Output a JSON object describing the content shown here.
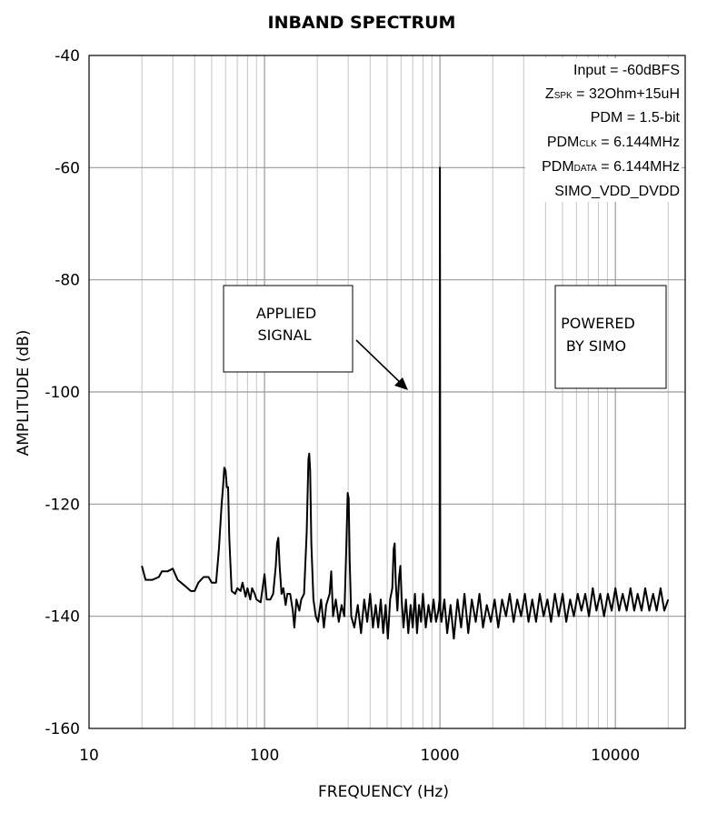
{
  "chart_data": {
    "type": "line",
    "title": "INBAND SPECTRUM",
    "xlabel": "FREQUENCY (Hz)",
    "ylabel": "AMPLITUDE (dB)",
    "xscale": "log",
    "xlim": [
      10,
      25000
    ],
    "ylim": [
      -160,
      -40
    ],
    "grid": true,
    "xticks": [
      {
        "value": 10,
        "label": "10"
      },
      {
        "value": 100,
        "label": "100"
      },
      {
        "value": 1000,
        "label": "1000"
      },
      {
        "value": 10000,
        "label": "10000"
      }
    ],
    "yticks": [
      {
        "value": -40,
        "label": "-40"
      },
      {
        "value": -60,
        "label": "-60"
      },
      {
        "value": -80,
        "label": "-80"
      },
      {
        "value": -100,
        "label": "-100"
      },
      {
        "value": -120,
        "label": "-120"
      },
      {
        "value": -140,
        "label": "-140"
      },
      {
        "value": -160,
        "label": "-160"
      }
    ],
    "series": [
      {
        "points": [
          [
            20,
            -131
          ],
          [
            21,
            -133.5
          ],
          [
            23,
            -133.5
          ],
          [
            25,
            -133
          ],
          [
            26,
            -132
          ],
          [
            28,
            -132
          ],
          [
            30,
            -131.5
          ],
          [
            32,
            -133.5
          ],
          [
            35,
            -134.5
          ],
          [
            38,
            -135.5
          ],
          [
            40,
            -135.5
          ],
          [
            42,
            -134
          ],
          [
            45,
            -133
          ],
          [
            48,
            -133
          ],
          [
            50,
            -134
          ],
          [
            53,
            -134
          ],
          [
            55,
            -128
          ],
          [
            57,
            -120
          ],
          [
            58,
            -117
          ],
          [
            59,
            -113.5
          ],
          [
            60,
            -114
          ],
          [
            61,
            -117
          ],
          [
            62,
            -117
          ],
          [
            63,
            -126
          ],
          [
            65,
            -135.5
          ],
          [
            68,
            -136
          ],
          [
            70,
            -135
          ],
          [
            73,
            -135.5
          ],
          [
            75,
            -134
          ],
          [
            78,
            -136.5
          ],
          [
            80,
            -135
          ],
          [
            83,
            -137
          ],
          [
            85,
            -135
          ],
          [
            88,
            -136
          ],
          [
            90,
            -137
          ],
          [
            95,
            -137.5
          ],
          [
            100,
            -132.5
          ],
          [
            103,
            -137
          ],
          [
            108,
            -137
          ],
          [
            112,
            -136
          ],
          [
            116,
            -131
          ],
          [
            118,
            -127
          ],
          [
            120,
            -126
          ],
          [
            122,
            -131
          ],
          [
            125,
            -136
          ],
          [
            128,
            -135
          ],
          [
            132,
            -138
          ],
          [
            135,
            -136
          ],
          [
            140,
            -136
          ],
          [
            145,
            -139
          ],
          [
            148,
            -142
          ],
          [
            152,
            -137
          ],
          [
            158,
            -139
          ],
          [
            162,
            -137
          ],
          [
            168,
            -136
          ],
          [
            174,
            -125
          ],
          [
            178,
            -112
          ],
          [
            180,
            -111
          ],
          [
            182,
            -114
          ],
          [
            185,
            -127
          ],
          [
            190,
            -137
          ],
          [
            196,
            -140
          ],
          [
            202,
            -141
          ],
          [
            210,
            -137
          ],
          [
            218,
            -142
          ],
          [
            225,
            -138
          ],
          [
            235,
            -136
          ],
          [
            240,
            -132
          ],
          [
            246,
            -140
          ],
          [
            255,
            -137
          ],
          [
            265,
            -141
          ],
          [
            275,
            -138
          ],
          [
            285,
            -140
          ],
          [
            293,
            -127
          ],
          [
            298,
            -118
          ],
          [
            302,
            -119
          ],
          [
            306,
            -130
          ],
          [
            312,
            -140
          ],
          [
            325,
            -142
          ],
          [
            340,
            -138
          ],
          [
            355,
            -143
          ],
          [
            370,
            -137
          ],
          [
            385,
            -141
          ],
          [
            400,
            -136
          ],
          [
            415,
            -142
          ],
          [
            430,
            -138
          ],
          [
            445,
            -142
          ],
          [
            460,
            -137
          ],
          [
            475,
            -143
          ],
          [
            490,
            -138
          ],
          [
            505,
            -144
          ],
          [
            520,
            -137
          ],
          [
            535,
            -135
          ],
          [
            545,
            -128
          ],
          [
            552,
            -127
          ],
          [
            560,
            -134
          ],
          [
            572,
            -139
          ],
          [
            585,
            -133
          ],
          [
            595,
            -131
          ],
          [
            605,
            -137
          ],
          [
            620,
            -142
          ],
          [
            640,
            -137
          ],
          [
            660,
            -143
          ],
          [
            680,
            -138
          ],
          [
            700,
            -142
          ],
          [
            720,
            -136
          ],
          [
            740,
            -143
          ],
          [
            760,
            -138
          ],
          [
            780,
            -141
          ],
          [
            800,
            -136
          ],
          [
            830,
            -142
          ],
          [
            860,
            -138
          ],
          [
            890,
            -141
          ],
          [
            920,
            -137
          ],
          [
            950,
            -141
          ],
          [
            980,
            -139
          ],
          [
            995,
            -137
          ],
          [
            1000,
            -60
          ],
          [
            1005,
            -139
          ],
          [
            1020,
            -141
          ],
          [
            1060,
            -137
          ],
          [
            1100,
            -143
          ],
          [
            1150,
            -138
          ],
          [
            1200,
            -144
          ],
          [
            1260,
            -137
          ],
          [
            1320,
            -142
          ],
          [
            1380,
            -136
          ],
          [
            1450,
            -143
          ],
          [
            1520,
            -137
          ],
          [
            1600,
            -141
          ],
          [
            1680,
            -136
          ],
          [
            1760,
            -142
          ],
          [
            1850,
            -138
          ],
          [
            1950,
            -141
          ],
          [
            2050,
            -137
          ],
          [
            2150,
            -142
          ],
          [
            2260,
            -137
          ],
          [
            2380,
            -140
          ],
          [
            2500,
            -136
          ],
          [
            2630,
            -141
          ],
          [
            2760,
            -137
          ],
          [
            2900,
            -140
          ],
          [
            3050,
            -136
          ],
          [
            3200,
            -141
          ],
          [
            3360,
            -137
          ],
          [
            3530,
            -141
          ],
          [
            3710,
            -136
          ],
          [
            3900,
            -140
          ],
          [
            4100,
            -137
          ],
          [
            4300,
            -141
          ],
          [
            4520,
            -136
          ],
          [
            4750,
            -140
          ],
          [
            5000,
            -136
          ],
          [
            5250,
            -141
          ],
          [
            5520,
            -137
          ],
          [
            5800,
            -140
          ],
          [
            6100,
            -136
          ],
          [
            6400,
            -139
          ],
          [
            6730,
            -136
          ],
          [
            7070,
            -140
          ],
          [
            7430,
            -135
          ],
          [
            7800,
            -139
          ],
          [
            8200,
            -136
          ],
          [
            8620,
            -140
          ],
          [
            9060,
            -136
          ],
          [
            9520,
            -139
          ],
          [
            10000,
            -135
          ],
          [
            10500,
            -139
          ],
          [
            11000,
            -136
          ],
          [
            11600,
            -139
          ],
          [
            12200,
            -135
          ],
          [
            12800,
            -139
          ],
          [
            13400,
            -136
          ],
          [
            14100,
            -139
          ],
          [
            14800,
            -135
          ],
          [
            15600,
            -139
          ],
          [
            16400,
            -136
          ],
          [
            17200,
            -139
          ],
          [
            18100,
            -135
          ],
          [
            19000,
            -139
          ],
          [
            20000,
            -137
          ]
        ]
      }
    ],
    "annotations": {
      "info_box": {
        "input": "Input = -60dBFS",
        "zspk_prefix": "Z",
        "zspk_sub": "SPK",
        "zspk_suffix": " = 32Ohm+15uH",
        "pdm": "PDM = 1.5-bit",
        "pdmclk_prefix": "PDM",
        "pdmclk_sub": "CLK",
        "pdmclk_suffix": " = 6.144MHz",
        "pdmdata_prefix": "PDM",
        "pdmdata_sub": "DATA",
        "pdmdata_suffix": " = 6.144MHz",
        "supply": "SIMO_VDD_DVDD"
      },
      "applied_signal": [
        "APPLIED",
        "SIGNAL"
      ],
      "powered_by": [
        "POWERED",
        "BY SIMO"
      ]
    }
  }
}
